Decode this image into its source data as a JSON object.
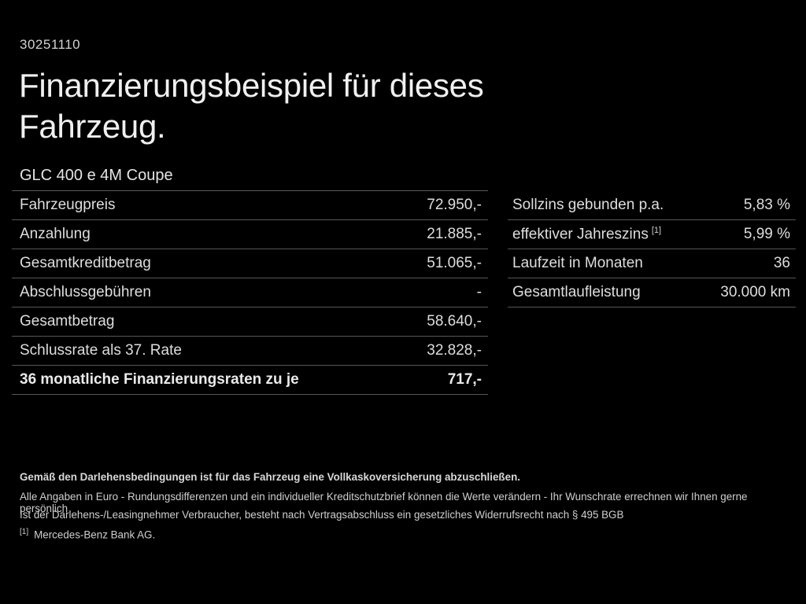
{
  "header": {
    "ref_number": "30251110",
    "title": "Finanzierungsbeispiel für dieses Fahrzeug.",
    "vehicle": "GLC 400 e 4M Coupe"
  },
  "finance_table": {
    "rows": [
      {
        "label": "Fahrzeugpreis",
        "value": "72.950,-"
      },
      {
        "label": "Anzahlung",
        "value": "21.885,-"
      },
      {
        "label": "Gesamtkreditbetrag",
        "value": "51.065,-"
      },
      {
        "label": "Abschlussgebühren",
        "value": "-"
      },
      {
        "label": "Gesamtbetrag",
        "value": "58.640,-"
      },
      {
        "label": "Schlussrate als 37. Rate",
        "value": "32.828,-"
      },
      {
        "label": "36 monatliche Finanzierungsraten zu je",
        "value": "717,-"
      }
    ]
  },
  "conditions_table": {
    "rows": [
      {
        "label": "Sollzins gebunden p.a.",
        "sup": "",
        "value": "5,83 %"
      },
      {
        "label": "effektiver Jahreszins",
        "sup": "[1]",
        "value": "5,99 %"
      },
      {
        "label": "Laufzeit in Monaten",
        "sup": "",
        "value": "36"
      },
      {
        "label": "Gesamtlaufleistung",
        "sup": "",
        "value": "30.000 km"
      }
    ]
  },
  "footnotes": {
    "insurance_note": "Gemäß den Darlehensbedingungen ist für das Fahrzeug eine Vollkaskoversicherung abzuschließen.",
    "disclaimer_values": "Alle Angaben in Euro - Rundungsdifferenzen und ein individueller Kreditschutzbrief können die Werte verändern - Ihr Wunschrate errechnen wir Ihnen gerne persönlich",
    "disclaimer_withdrawal": "Ist der Darlehens-/Leasingnehmer Verbraucher, besteht nach Vertragsabschluss ein gesetzliches Widerrufsrecht nach § 495 BGB",
    "marker": "[1]",
    "bank": "Mercedes-Benz Bank AG."
  },
  "colors": {
    "background": "#000000",
    "text_primary": "#eaeaea",
    "text_secondary": "#cfcfcf",
    "divider": "#5a5a5a"
  }
}
